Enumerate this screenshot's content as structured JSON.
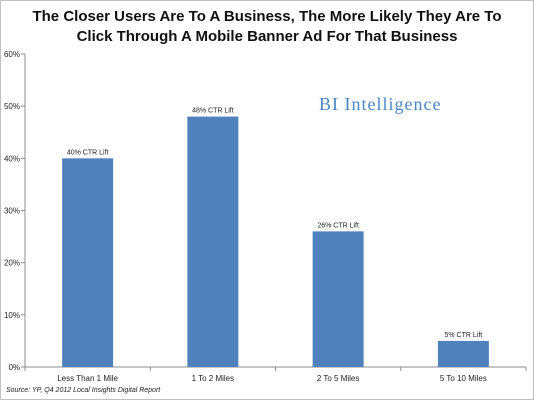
{
  "title": {
    "line1": "The Closer Users Are To A Business, The More Likely They Are To",
    "line2": "Click Through A Mobile Banner Ad For That Business"
  },
  "brand": "BI Intelligence",
  "source": "Source: YP, Q4 2012 Local Insights Digital Report",
  "colors": {
    "bar": "#4f81bd",
    "axis": "#8c8c8c",
    "text": "#222222",
    "brand": "#4a86c5"
  },
  "chart_data": {
    "type": "bar",
    "title": "The Closer Users Are To A Business, The More Likely They Are To Click Through A Mobile Banner Ad For That Business",
    "xlabel": "",
    "ylabel": "",
    "categories": [
      "Less Than 1 Mile",
      "1 To 2 Miles",
      "2 To 5 Miles",
      "5 To 10 Miles"
    ],
    "values": [
      40,
      48,
      26,
      5
    ],
    "data_labels": [
      "40% CTR Lift",
      "48% CTR Lift",
      "26% CTR Lift",
      "5% CTR Lift"
    ],
    "ylim": [
      0,
      60
    ],
    "yticks": [
      0,
      10,
      20,
      30,
      40,
      50,
      60
    ],
    "ytick_labels": [
      "0%",
      "10%",
      "20%",
      "30%",
      "40%",
      "50%",
      "60%"
    ],
    "grid": false,
    "legend": "none"
  }
}
